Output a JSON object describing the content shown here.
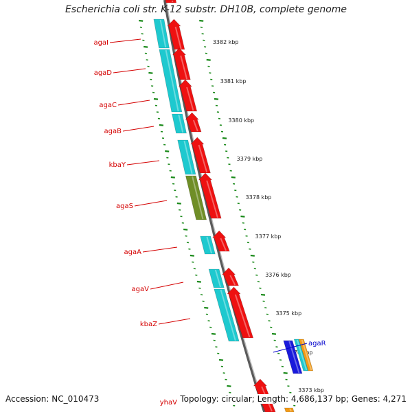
{
  "title": "Escherichia coli str. K-12 substr. DH10B, complete genome",
  "accession_text": "Accession: NC_010473",
  "footer_text": "Topology: circular; Length: 4,686,137 bp; Genes: 4,271",
  "colors": {
    "cyan": "#1ec9cf",
    "red": "#ee1111",
    "olive": "#6f8e27",
    "blue": "#1a1adb",
    "orange": "#f29a17",
    "label_red": "#d40000",
    "label_blue": "#0000cc",
    "scale_green": "#1a8a1a",
    "axis_gray": "#8a8a8a"
  },
  "scale_labels": [
    "3382 kbp",
    "3381 kbp",
    "3380 kbp",
    "3379 kbp",
    "3378 kbp",
    "3377 kbp",
    "3376 kbp",
    "3375 kbp",
    "3374 kbp",
    "3373 kbp"
  ],
  "genes": [
    {
      "name": "agaI",
      "color": "label_red"
    },
    {
      "name": "agaD",
      "color": "label_red"
    },
    {
      "name": "agaC",
      "color": "label_red"
    },
    {
      "name": "agaB",
      "color": "label_red"
    },
    {
      "name": "kbaY",
      "color": "label_red"
    },
    {
      "name": "agaS",
      "color": "label_red"
    },
    {
      "name": "agaA",
      "color": "label_red"
    },
    {
      "name": "agaV",
      "color": "label_red"
    },
    {
      "name": "kbaZ",
      "color": "label_red"
    },
    {
      "name": "agaR",
      "color": "label_blue"
    },
    {
      "name": "yhaV",
      "color": "label_red"
    }
  ]
}
